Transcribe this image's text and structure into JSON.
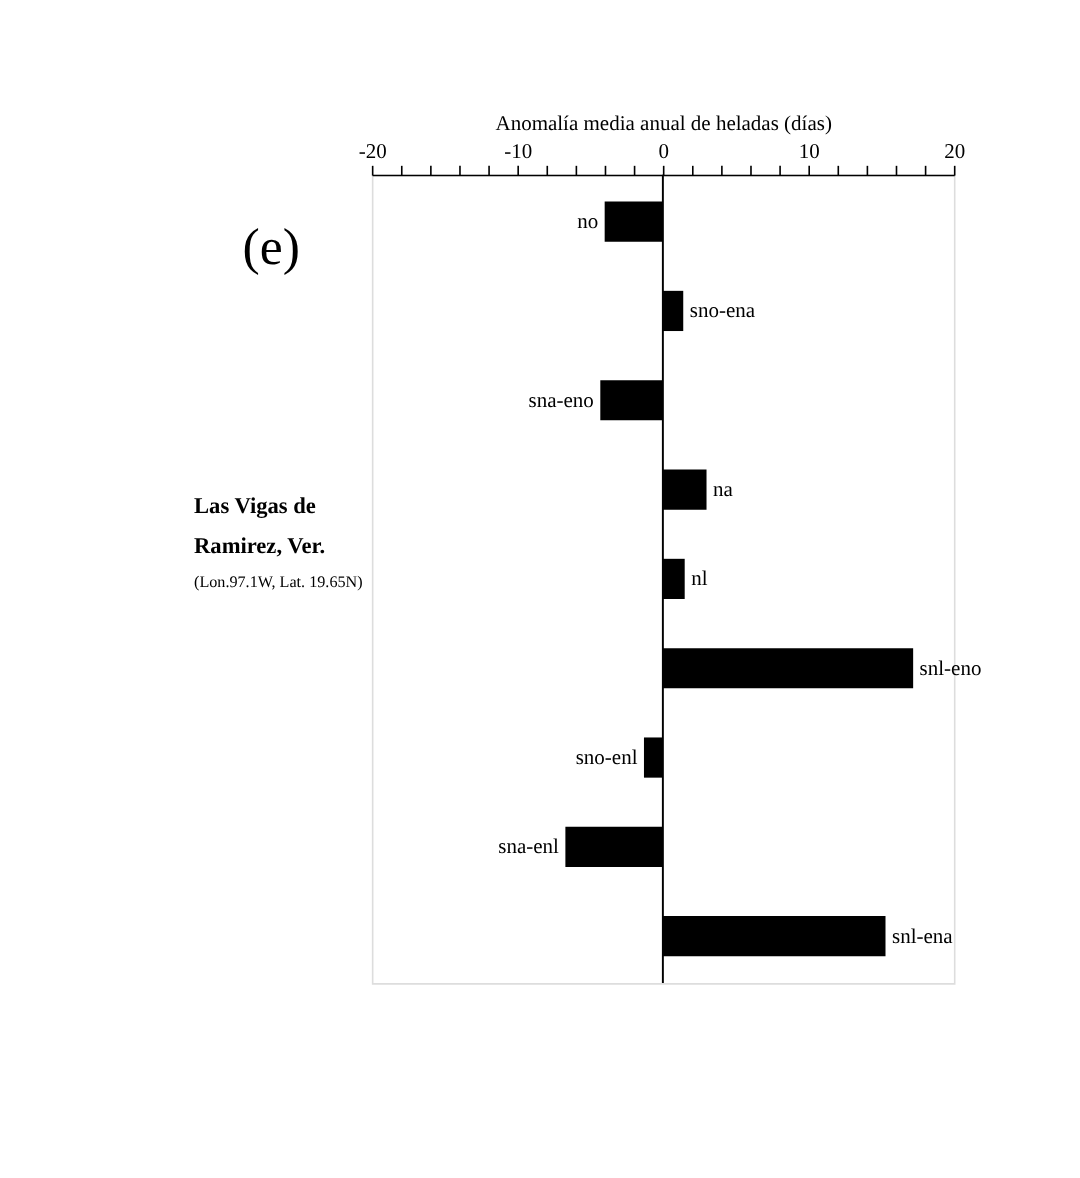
{
  "chart_data": {
    "type": "bar",
    "orientation": "horizontal",
    "title": "(e)",
    "xlabel": "Anomalía media anual de heladas (días)",
    "categories": [
      "no",
      "sno-ena",
      "sna-eno",
      "na",
      "nl",
      "snl-eno",
      "sno-enl",
      "sna-enl",
      "snl-ena"
    ],
    "values": [
      -4,
      1.4,
      -4.3,
      3,
      1.5,
      17.2,
      -1.3,
      -6.7,
      15.3
    ],
    "color": "#000000",
    "xlim": [
      -20,
      20
    ],
    "xticks": [
      {
        "value": -20,
        "label": "-20"
      },
      {
        "value": -18,
        "label": null
      },
      {
        "value": -16,
        "label": null
      },
      {
        "value": -14,
        "label": null
      },
      {
        "value": -12,
        "label": null
      },
      {
        "value": -10,
        "label": "-10"
      },
      {
        "value": -8,
        "label": null
      },
      {
        "value": -6,
        "label": null
      },
      {
        "value": -4,
        "label": null
      },
      {
        "value": -2,
        "label": null
      },
      0,
      {
        "value": 2,
        "label": null
      },
      {
        "value": 4,
        "label": null
      },
      {
        "value": 6,
        "label": null
      },
      {
        "value": 8,
        "label": null
      },
      10,
      {
        "value": 12,
        "label": null
      },
      {
        "value": 14,
        "label": null
      },
      {
        "value": 16,
        "label": null
      },
      {
        "value": 18,
        "label": null
      },
      20
    ],
    "tick_labels": "x",
    "grid": false,
    "ref_lines": [
      {
        "axis": "x",
        "value": 0,
        "label": null
      }
    ],
    "annotations": [
      "Las Vigas de",
      "Ramirez, Ver.",
      "(Lon.97.1W, Lat. 19.65N)"
    ]
  }
}
